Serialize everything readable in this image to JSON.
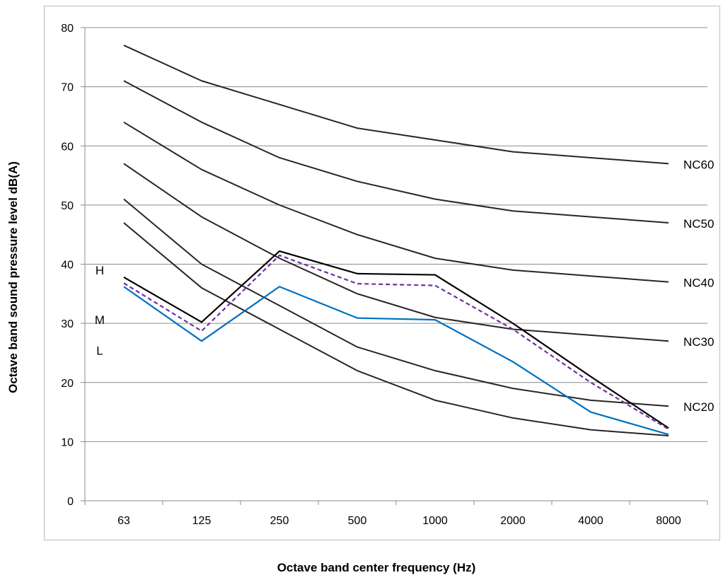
{
  "chart_data": {
    "type": "line",
    "title": "",
    "xlabel": "Octave band center frequency (Hz)",
    "ylabel": "Octave band sound pressure level dB(A)",
    "categories": [
      "63",
      "125",
      "250",
      "500",
      "1000",
      "2000",
      "4000",
      "8000"
    ],
    "ylim": [
      0,
      80
    ],
    "yticks": [
      0,
      10,
      20,
      30,
      40,
      50,
      60,
      70,
      80
    ],
    "grid": true,
    "legend": "none",
    "series": [
      {
        "name": "NC60",
        "color": "#262626",
        "dash": false,
        "width": 2,
        "values": [
          77,
          71,
          67,
          63,
          61,
          59,
          58,
          57
        ]
      },
      {
        "name": "NC50",
        "color": "#262626",
        "dash": false,
        "width": 2,
        "values": [
          71,
          64,
          58,
          54,
          51,
          49,
          48,
          47
        ]
      },
      {
        "name": "NC40",
        "color": "#262626",
        "dash": false,
        "width": 2,
        "values": [
          64,
          56,
          50,
          45,
          41,
          39,
          38,
          37
        ]
      },
      {
        "name": "NC30",
        "color": "#262626",
        "dash": false,
        "width": 2,
        "values": [
          57,
          48,
          41,
          35,
          31,
          29,
          28,
          27
        ]
      },
      {
        "name": "NC20",
        "color": "#262626",
        "dash": false,
        "width": 2,
        "values": [
          51,
          40,
          33,
          26,
          22,
          19,
          17,
          16
        ]
      },
      {
        "name": "",
        "color": "#262626",
        "dash": false,
        "width": 2,
        "values": [
          47,
          36,
          29,
          22,
          17,
          14,
          12,
          11
        ]
      },
      {
        "name": "H",
        "color": "#000000",
        "dash": false,
        "width": 2.2,
        "values": [
          37.8,
          30.2,
          42.2,
          38.4,
          38.2,
          30,
          21,
          12.3
        ]
      },
      {
        "name": "M",
        "color": "#7030a0",
        "dash": true,
        "width": 2.2,
        "values": [
          36.8,
          28.7,
          41.5,
          36.7,
          36.4,
          29,
          20,
          12.1
        ]
      },
      {
        "name": "L",
        "color": "#0070c0",
        "dash": false,
        "width": 2.2,
        "values": [
          36.2,
          27,
          36.2,
          30.9,
          30.6,
          23.5,
          15,
          11.2
        ]
      }
    ]
  }
}
